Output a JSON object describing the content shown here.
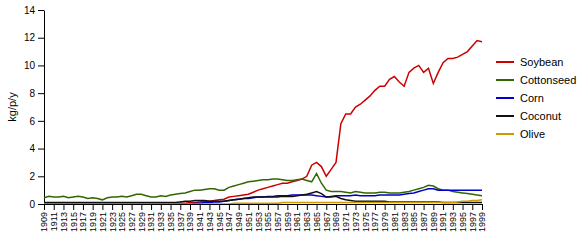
{
  "chart_data": {
    "type": "line",
    "ylabel": "kg/p/y",
    "x": [
      1909,
      1910,
      1911,
      1912,
      1913,
      1914,
      1915,
      1916,
      1917,
      1918,
      1919,
      1920,
      1921,
      1922,
      1923,
      1924,
      1925,
      1926,
      1927,
      1928,
      1929,
      1930,
      1931,
      1932,
      1933,
      1934,
      1935,
      1936,
      1937,
      1938,
      1939,
      1940,
      1941,
      1942,
      1943,
      1944,
      1945,
      1946,
      1947,
      1948,
      1949,
      1950,
      1951,
      1952,
      1953,
      1954,
      1955,
      1956,
      1957,
      1958,
      1959,
      1960,
      1961,
      1962,
      1963,
      1964,
      1965,
      1966,
      1967,
      1968,
      1969,
      1970,
      1971,
      1972,
      1973,
      1974,
      1975,
      1976,
      1977,
      1978,
      1979,
      1980,
      1981,
      1982,
      1983,
      1984,
      1985,
      1986,
      1987,
      1988,
      1989,
      1990,
      1991,
      1992,
      1993,
      1994,
      1995,
      1996,
      1997,
      1998,
      1999
    ],
    "series": [
      {
        "name": "Soybean",
        "color": "#cc0000",
        "values": [
          0.05,
          0.05,
          0.05,
          0.05,
          0.05,
          0.05,
          0.05,
          0.05,
          0.05,
          0.05,
          0.05,
          0.05,
          0.05,
          0.05,
          0.05,
          0.05,
          0.05,
          0.05,
          0.05,
          0.05,
          0.05,
          0.05,
          0.05,
          0.05,
          0.05,
          0.05,
          0.05,
          0.05,
          0.05,
          0.05,
          0.1,
          0.1,
          0.15,
          0.2,
          0.2,
          0.25,
          0.3,
          0.35,
          0.5,
          0.55,
          0.6,
          0.65,
          0.7,
          0.85,
          1.0,
          1.1,
          1.2,
          1.3,
          1.4,
          1.5,
          1.5,
          1.6,
          1.7,
          1.8,
          2.0,
          2.8,
          3.0,
          2.7,
          2.0,
          2.5,
          3.0,
          5.8,
          6.5,
          6.5,
          7.0,
          7.2,
          7.5,
          7.8,
          8.2,
          8.5,
          8.5,
          9.0,
          9.2,
          8.8,
          8.5,
          9.5,
          9.8,
          10.0,
          9.5,
          9.8,
          8.7,
          9.5,
          10.2,
          10.5,
          10.5,
          10.6,
          10.8,
          11.0,
          11.4,
          11.8,
          11.7
        ]
      },
      {
        "name": "Cottonseed",
        "color": "#336600",
        "values": [
          0.45,
          0.55,
          0.5,
          0.5,
          0.55,
          0.45,
          0.5,
          0.55,
          0.5,
          0.4,
          0.45,
          0.4,
          0.3,
          0.45,
          0.5,
          0.5,
          0.55,
          0.5,
          0.6,
          0.7,
          0.7,
          0.6,
          0.5,
          0.5,
          0.6,
          0.55,
          0.65,
          0.7,
          0.75,
          0.8,
          0.9,
          1.0,
          1.0,
          1.05,
          1.1,
          1.1,
          1.0,
          1.0,
          1.2,
          1.3,
          1.4,
          1.5,
          1.6,
          1.65,
          1.7,
          1.75,
          1.75,
          1.8,
          1.8,
          1.75,
          1.7,
          1.7,
          1.75,
          1.8,
          1.7,
          1.6,
          2.2,
          1.5,
          1.0,
          0.9,
          0.9,
          0.9,
          0.85,
          0.8,
          0.9,
          0.85,
          0.8,
          0.8,
          0.8,
          0.85,
          0.85,
          0.8,
          0.8,
          0.8,
          0.85,
          0.9,
          1.0,
          1.1,
          1.2,
          1.35,
          1.3,
          1.1,
          1.0,
          1.0,
          0.9,
          0.85,
          0.8,
          0.75,
          0.7,
          0.65,
          0.6
        ]
      },
      {
        "name": "Corn",
        "color": "#0000cc",
        "values": [
          0.0,
          0.0,
          0.0,
          0.0,
          0.0,
          0.0,
          0.0,
          0.0,
          0.0,
          0.0,
          0.0,
          0.0,
          0.0,
          0.0,
          0.0,
          0.0,
          0.0,
          0.0,
          0.0,
          0.0,
          0.0,
          0.0,
          0.0,
          0.0,
          0.0,
          0.0,
          0.0,
          0.0,
          0.0,
          0.0,
          0.0,
          0.05,
          0.05,
          0.1,
          0.1,
          0.15,
          0.15,
          0.2,
          0.25,
          0.3,
          0.35,
          0.4,
          0.4,
          0.45,
          0.5,
          0.5,
          0.55,
          0.55,
          0.6,
          0.6,
          0.6,
          0.65,
          0.65,
          0.65,
          0.65,
          0.65,
          0.6,
          0.55,
          0.5,
          0.55,
          0.6,
          0.6,
          0.6,
          0.6,
          0.65,
          0.6,
          0.6,
          0.6,
          0.6,
          0.65,
          0.65,
          0.65,
          0.65,
          0.65,
          0.7,
          0.75,
          0.8,
          0.9,
          1.0,
          1.1,
          1.1,
          1.0,
          1.0,
          1.0,
          1.0,
          1.0,
          1.0,
          1.0,
          1.0,
          1.0,
          1.0
        ]
      },
      {
        "name": "Coconut",
        "color": "#111111",
        "values": [
          0.1,
          0.1,
          0.1,
          0.1,
          0.1,
          0.1,
          0.1,
          0.1,
          0.1,
          0.1,
          0.1,
          0.1,
          0.1,
          0.1,
          0.1,
          0.1,
          0.1,
          0.1,
          0.1,
          0.1,
          0.1,
          0.1,
          0.1,
          0.1,
          0.1,
          0.1,
          0.1,
          0.1,
          0.15,
          0.2,
          0.2,
          0.25,
          0.25,
          0.25,
          0.2,
          0.2,
          0.2,
          0.2,
          0.25,
          0.3,
          0.35,
          0.4,
          0.45,
          0.5,
          0.5,
          0.5,
          0.5,
          0.5,
          0.5,
          0.55,
          0.55,
          0.55,
          0.6,
          0.65,
          0.7,
          0.8,
          0.9,
          0.75,
          0.5,
          0.5,
          0.55,
          0.4,
          0.3,
          0.25,
          0.2,
          0.2,
          0.2,
          0.2,
          0.2,
          0.2,
          0.2,
          0.15,
          0.15,
          0.15,
          0.15,
          0.15,
          0.15,
          0.15,
          0.15,
          0.15,
          0.15,
          0.15,
          0.1,
          0.1,
          0.1,
          0.1,
          0.1,
          0.1,
          0.1,
          0.1,
          0.1
        ]
      },
      {
        "name": "Olive",
        "color": "#cc9900",
        "values": [
          0.0,
          0.0,
          0.0,
          0.0,
          0.0,
          0.0,
          0.0,
          0.0,
          0.0,
          0.0,
          0.0,
          0.0,
          0.0,
          0.0,
          0.0,
          0.0,
          0.0,
          0.0,
          0.0,
          0.0,
          0.0,
          0.0,
          0.0,
          0.0,
          0.0,
          0.0,
          0.0,
          0.0,
          0.0,
          0.0,
          0.0,
          0.0,
          0.0,
          0.0,
          0.0,
          0.0,
          0.0,
          0.0,
          0.0,
          0.05,
          0.05,
          0.05,
          0.05,
          0.05,
          0.05,
          0.05,
          0.05,
          0.05,
          0.05,
          0.1,
          0.1,
          0.1,
          0.1,
          0.1,
          0.1,
          0.1,
          0.1,
          0.1,
          0.1,
          0.1,
          0.1,
          0.1,
          0.1,
          0.1,
          0.1,
          0.1,
          0.1,
          0.1,
          0.1,
          0.1,
          0.1,
          0.1,
          0.1,
          0.1,
          0.1,
          0.1,
          0.1,
          0.1,
          0.1,
          0.1,
          0.1,
          0.1,
          0.1,
          0.1,
          0.1,
          0.15,
          0.2,
          0.2,
          0.25,
          0.25,
          0.3
        ]
      }
    ],
    "xlim": [
      1909,
      1999
    ],
    "ylim": [
      0,
      14
    ],
    "xticks": [
      1909,
      1911,
      1913,
      1915,
      1917,
      1919,
      1921,
      1923,
      1925,
      1927,
      1929,
      1931,
      1933,
      1935,
      1937,
      1939,
      1941,
      1943,
      1945,
      1947,
      1949,
      1951,
      1953,
      1955,
      1957,
      1959,
      1961,
      1963,
      1965,
      1967,
      1969,
      1971,
      1973,
      1975,
      1977,
      1979,
      1981,
      1983,
      1985,
      1987,
      1989,
      1991,
      1993,
      1995,
      1997,
      1999
    ],
    "yticks": [
      0,
      2,
      4,
      6,
      8,
      10,
      12,
      14
    ],
    "grid": false,
    "legend": "right"
  }
}
